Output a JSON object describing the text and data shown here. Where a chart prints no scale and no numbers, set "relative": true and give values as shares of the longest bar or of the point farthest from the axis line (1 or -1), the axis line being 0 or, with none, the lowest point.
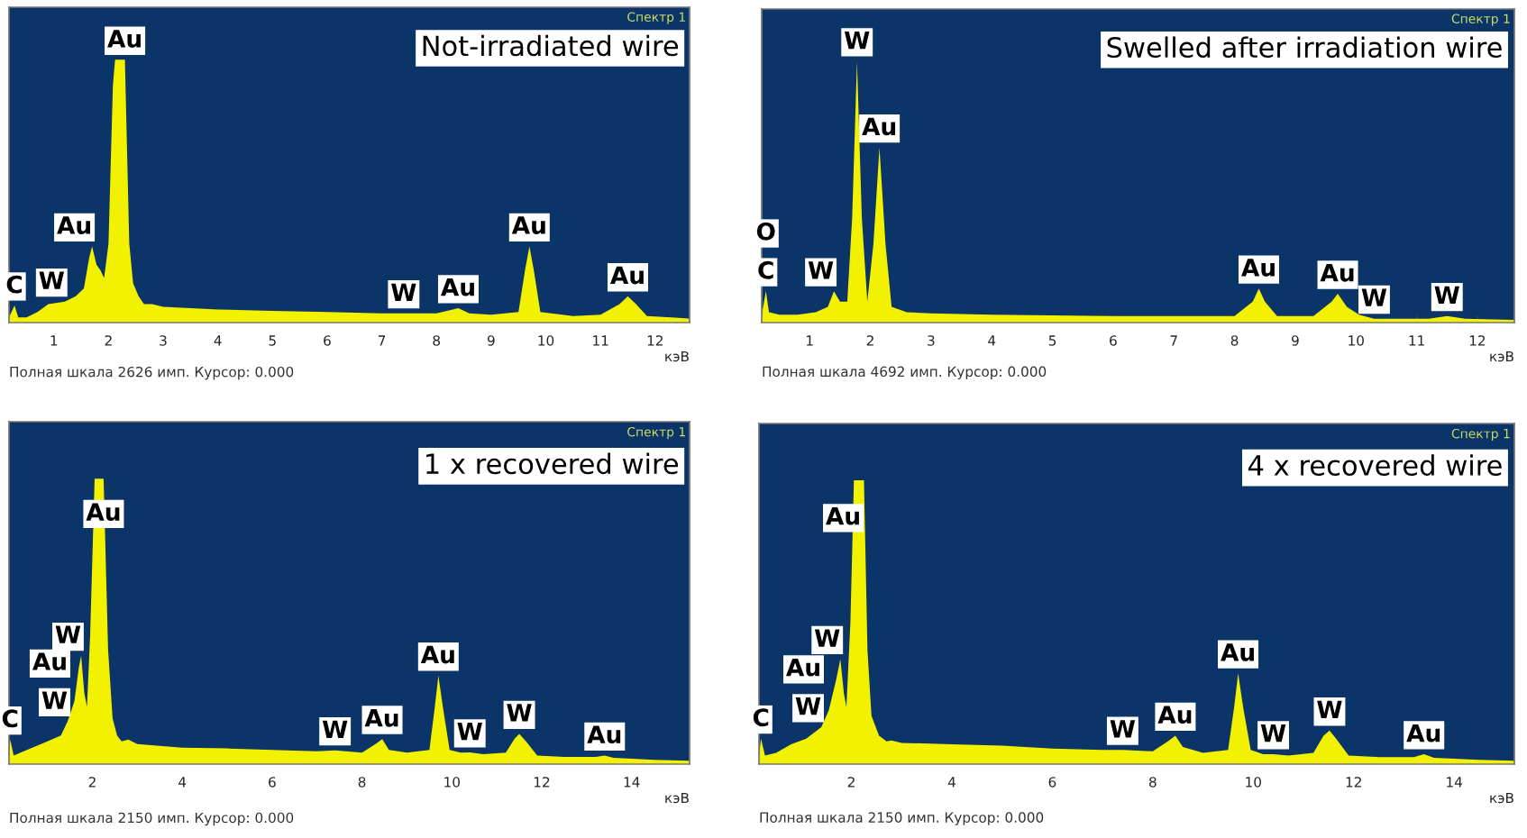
{
  "chart_data": [
    {
      "type": "area",
      "title": "Not-irradiated wire",
      "xlabel": "кэВ",
      "relative": true,
      "tick_labels": "x",
      "xlim": [
        0.18,
        12.63
      ],
      "xticks": [
        1,
        2,
        3,
        4,
        5,
        6,
        7,
        8,
        9,
        10,
        11,
        12
      ],
      "x": [
        0.18,
        0.28,
        0.35,
        0.5,
        0.7,
        0.9,
        1.2,
        1.4,
        1.55,
        1.65,
        1.7,
        1.78,
        1.85,
        1.92,
        2.0,
        2.08,
        2.12,
        2.3,
        2.38,
        2.45,
        2.55,
        2.65,
        2.8,
        3.0,
        3.5,
        4,
        5,
        6,
        7,
        7.4,
        8,
        8.4,
        8.6,
        9.0,
        9.5,
        9.62,
        9.7,
        9.78,
        9.9,
        10.5,
        11.0,
        11.35,
        11.5,
        11.65,
        11.85,
        12.3,
        12.63
      ],
      "series": [
        {
          "color": "#f2f200",
          "values": [
            0.02,
            0.065,
            0.02,
            0.02,
            0.04,
            0.07,
            0.08,
            0.1,
            0.13,
            0.25,
            0.29,
            0.22,
            0.2,
            0.17,
            0.3,
            0.9,
            1.0,
            1.0,
            0.3,
            0.15,
            0.1,
            0.07,
            0.07,
            0.06,
            0.055,
            0.05,
            0.045,
            0.04,
            0.035,
            0.035,
            0.035,
            0.055,
            0.035,
            0.03,
            0.04,
            0.2,
            0.29,
            0.2,
            0.04,
            0.025,
            0.03,
            0.07,
            0.1,
            0.07,
            0.025,
            0.02,
            0.015
          ]
        }
      ],
      "annotations": [
        "Спектр 1",
        "Полная шкала 2626 имп. Курсор: 0.000",
        {
          "text": "Au",
          "x": 2.3,
          "y": 1.0
        },
        {
          "text": "Au",
          "x": 1.7,
          "y": 0.29
        },
        {
          "text": "W",
          "x": 1.2,
          "y": 0.08
        },
        {
          "text": "C",
          "x": 0.28,
          "y": 0.065
        },
        {
          "text": "W",
          "x": 7.4,
          "y": 0.035
        },
        {
          "text": "Au",
          "x": 8.4,
          "y": 0.055
        },
        {
          "text": "Au",
          "x": 9.7,
          "y": 0.29
        },
        {
          "text": "Au",
          "x": 11.5,
          "y": 0.1
        }
      ]
    },
    {
      "type": "area",
      "title": "Swelled after irradiation wire",
      "xlabel": "кэВ",
      "relative": true,
      "tick_labels": "x",
      "xlim": [
        0.21,
        12.61
      ],
      "xticks": [
        1,
        2,
        3,
        4,
        5,
        6,
        7,
        8,
        9,
        10,
        11,
        12
      ],
      "x": [
        0.21,
        0.28,
        0.33,
        0.5,
        0.8,
        1.1,
        1.3,
        1.4,
        1.5,
        1.62,
        1.7,
        1.78,
        1.86,
        1.95,
        2.05,
        2.15,
        2.25,
        2.35,
        2.6,
        3,
        4,
        5,
        6,
        7,
        8.0,
        8.3,
        8.4,
        8.5,
        8.7,
        9.3,
        9.6,
        9.7,
        9.85,
        10.05,
        10.3,
        11.2,
        11.5,
        11.8,
        12.61
      ],
      "series": [
        {
          "color": "#f2f200",
          "values": [
            0.03,
            0.12,
            0.04,
            0.03,
            0.03,
            0.04,
            0.06,
            0.12,
            0.08,
            0.08,
            0.4,
            1.0,
            0.4,
            0.08,
            0.3,
            0.67,
            0.3,
            0.06,
            0.04,
            0.035,
            0.03,
            0.028,
            0.025,
            0.025,
            0.025,
            0.08,
            0.13,
            0.08,
            0.025,
            0.025,
            0.08,
            0.11,
            0.06,
            0.03,
            0.015,
            0.015,
            0.025,
            0.015,
            0.01
          ]
        }
      ],
      "annotations": [
        "Спектр 1",
        "Полная шкала 4692 имп. Курсор: 0.000",
        {
          "text": "W",
          "x": 1.78,
          "y": 1.0
        },
        {
          "text": "Au",
          "x": 2.15,
          "y": 0.67
        },
        {
          "text": "O",
          "x": 0.28,
          "y": 0.12
        },
        {
          "text": "C",
          "x": 0.28,
          "y": 0.12
        },
        {
          "text": "W",
          "x": 1.4,
          "y": 0.12
        },
        {
          "text": "Au",
          "x": 8.4,
          "y": 0.13
        },
        {
          "text": "Au",
          "x": 9.7,
          "y": 0.11
        },
        {
          "text": "W",
          "x": 10.3,
          "y": 0.015
        },
        {
          "text": "W",
          "x": 11.5,
          "y": 0.025
        }
      ]
    },
    {
      "type": "area",
      "title": "1 x recovered wire",
      "xlabel": "кэВ",
      "relative": true,
      "tick_labels": "x",
      "xlim": [
        0.145,
        15.29
      ],
      "xticks": [
        2,
        4,
        6,
        8,
        10,
        12,
        14
      ],
      "x": [
        0.145,
        0.17,
        0.25,
        0.4,
        0.7,
        1.0,
        1.3,
        1.45,
        1.6,
        1.7,
        1.75,
        1.82,
        1.88,
        1.95,
        2.05,
        2.25,
        2.35,
        2.45,
        2.55,
        2.65,
        2.8,
        3.0,
        4,
        5,
        6,
        7,
        7.4,
        8.0,
        8.3,
        8.45,
        8.6,
        9.0,
        9.5,
        9.62,
        9.7,
        9.8,
        9.95,
        10.2,
        10.4,
        10.7,
        11.2,
        11.4,
        11.5,
        11.65,
        11.9,
        12.5,
        13.2,
        13.4,
        13.6,
        14.5,
        15.29
      ],
      "series": [
        {
          "color": "#f2f200",
          "values": [
            0.03,
            0.086,
            0.03,
            0.04,
            0.06,
            0.08,
            0.1,
            0.15,
            0.22,
            0.34,
            0.38,
            0.25,
            0.2,
            0.45,
            1.0,
            1.0,
            0.4,
            0.16,
            0.1,
            0.08,
            0.086,
            0.07,
            0.058,
            0.055,
            0.05,
            0.045,
            0.048,
            0.04,
            0.07,
            0.088,
            0.05,
            0.04,
            0.05,
            0.2,
            0.31,
            0.2,
            0.05,
            0.04,
            0.041,
            0.035,
            0.04,
            0.09,
            0.106,
            0.08,
            0.03,
            0.025,
            0.025,
            0.03,
            0.022,
            0.015,
            0.012
          ]
        }
      ],
      "annotations": [
        "Спектр 1",
        "Полная шкала 2150 имп. Курсор: 0.000",
        {
          "text": "Au",
          "x": 2.25,
          "y": 0.81
        },
        {
          "text": "W",
          "x": 1.75,
          "y": 0.38
        },
        {
          "text": "Au",
          "x": 1.45,
          "y": 0.15
        },
        {
          "text": "W",
          "x": 1.45,
          "y": 0.15
        },
        {
          "text": "C",
          "x": 0.17,
          "y": 0.086
        },
        {
          "text": "W",
          "x": 7.4,
          "y": 0.048
        },
        {
          "text": "Au",
          "x": 8.45,
          "y": 0.088
        },
        {
          "text": "Au",
          "x": 9.7,
          "y": 0.31
        },
        {
          "text": "W",
          "x": 10.4,
          "y": 0.041
        },
        {
          "text": "W",
          "x": 11.5,
          "y": 0.106
        },
        {
          "text": "Au",
          "x": 13.4,
          "y": 0.03
        }
      ]
    },
    {
      "type": "area",
      "title": "4 x recovered wire",
      "xlabel": "кэВ",
      "relative": true,
      "tick_labels": "x",
      "xlim": [
        0.16,
        15.2
      ],
      "xticks": [
        2,
        4,
        6,
        8,
        10,
        12,
        14
      ],
      "x": [
        0.16,
        0.2,
        0.28,
        0.5,
        0.8,
        1.1,
        1.4,
        1.55,
        1.7,
        1.78,
        1.85,
        1.9,
        1.98,
        2.05,
        2.25,
        2.32,
        2.4,
        2.55,
        2.7,
        2.8,
        3.0,
        4,
        5,
        6,
        7,
        7.4,
        8.0,
        8.3,
        8.45,
        8.6,
        9.0,
        9.5,
        9.62,
        9.7,
        9.8,
        9.95,
        10.2,
        10.4,
        10.7,
        11.2,
        11.4,
        11.52,
        11.65,
        11.9,
        12.5,
        13.2,
        13.4,
        13.6,
        14.5,
        15.2
      ],
      "series": [
        {
          "color": "#f2f200",
          "values": [
            0.03,
            0.09,
            0.03,
            0.04,
            0.07,
            0.09,
            0.13,
            0.19,
            0.3,
            0.37,
            0.25,
            0.2,
            0.5,
            1.0,
            1.0,
            0.4,
            0.17,
            0.1,
            0.08,
            0.083,
            0.075,
            0.07,
            0.065,
            0.055,
            0.05,
            0.05,
            0.045,
            0.08,
            0.1,
            0.06,
            0.04,
            0.05,
            0.2,
            0.32,
            0.2,
            0.05,
            0.035,
            0.035,
            0.03,
            0.04,
            0.1,
            0.118,
            0.09,
            0.03,
            0.025,
            0.025,
            0.035,
            0.022,
            0.015,
            0.012
          ]
        }
      ],
      "annotations": [
        "Спектр 1",
        "Полная шкала 2150 имп. Курсор: 0.000",
        {
          "text": "Au",
          "x": 2.19,
          "y": 0.8
        },
        {
          "text": "W",
          "x": 1.78,
          "y": 0.37
        },
        {
          "text": "Au",
          "x": 1.4,
          "y": 0.13
        },
        {
          "text": "W",
          "x": 1.4,
          "y": 0.13
        },
        {
          "text": "C",
          "x": 0.2,
          "y": 0.09
        },
        {
          "text": "W",
          "x": 7.4,
          "y": 0.05
        },
        {
          "text": "Au",
          "x": 8.45,
          "y": 0.1
        },
        {
          "text": "Au",
          "x": 9.7,
          "y": 0.32
        },
        {
          "text": "W",
          "x": 10.4,
          "y": 0.035
        },
        {
          "text": "W",
          "x": 11.52,
          "y": 0.118
        },
        {
          "text": "Au",
          "x": 13.4,
          "y": 0.035
        }
      ]
    }
  ]
}
